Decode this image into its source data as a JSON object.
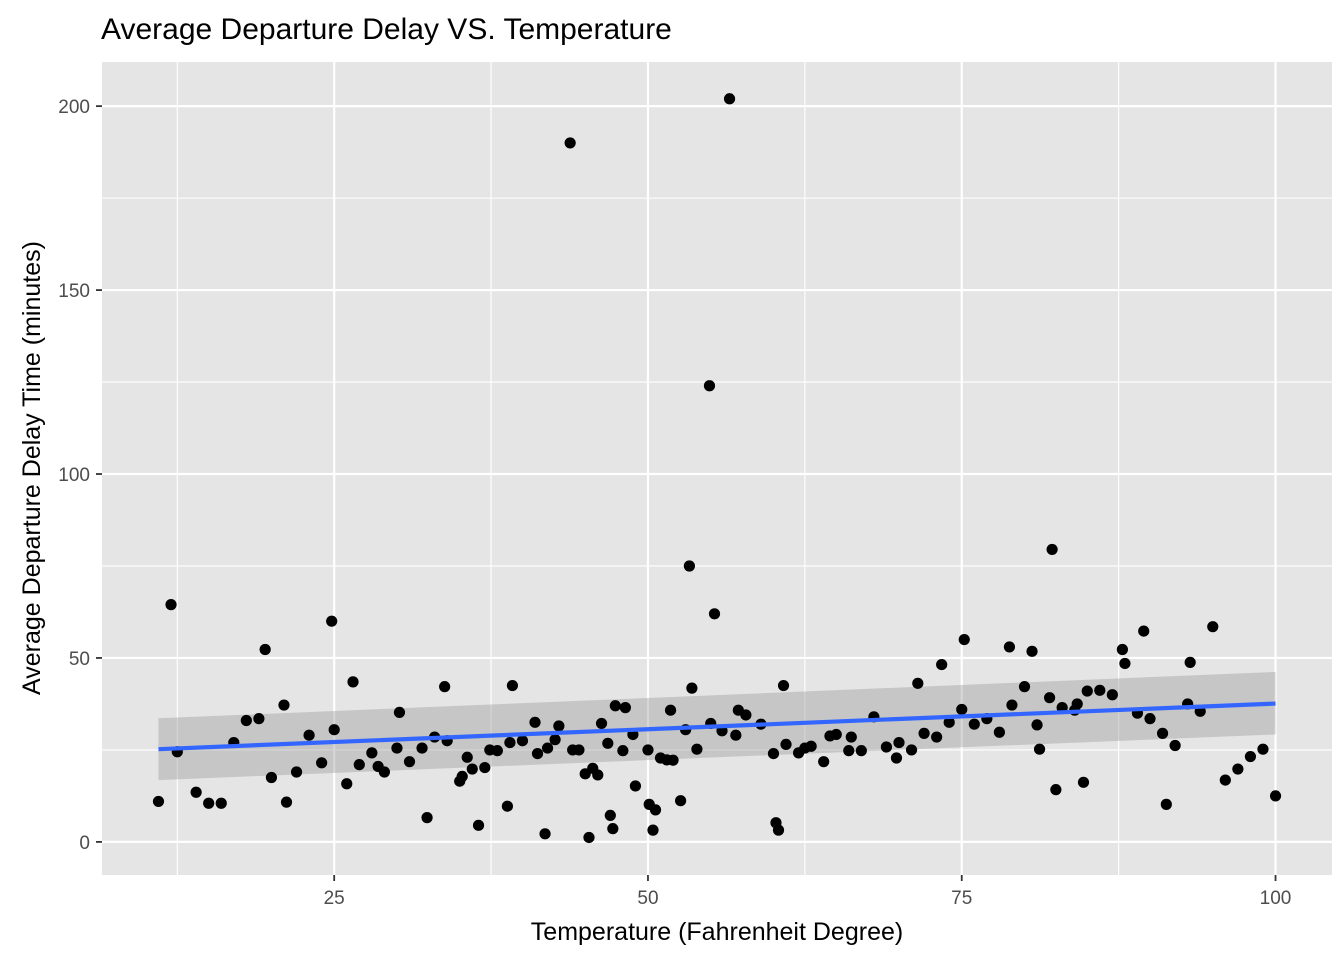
{
  "chart_data": {
    "type": "scatter",
    "title": "Average Departure Delay VS. Temperature",
    "xlabel": "Temperature (Fahrenheit Degree)",
    "ylabel": "Average Departure Delay Time (minutes)",
    "xlim": [
      6.5,
      104.5
    ],
    "ylim": [
      -9,
      212
    ],
    "x_ticks": [
      25,
      50,
      75,
      100
    ],
    "x_tick_labels": [
      "25",
      "50",
      "75",
      "100"
    ],
    "y_ticks": [
      0,
      50,
      100,
      150,
      200
    ],
    "y_tick_labels": [
      "0",
      "50",
      "100",
      "150",
      "200"
    ],
    "grid": true,
    "legend": "none",
    "colors": {
      "panel": "#e5e5e5",
      "grid": "#ffffff",
      "point": "#000000",
      "fit_line": "#3366ff",
      "ribbon": "#999999"
    },
    "points": [
      {
        "x": 11.0,
        "y": 11
      },
      {
        "x": 12.0,
        "y": 64.5
      },
      {
        "x": 12.5,
        "y": 24.5
      },
      {
        "x": 14.0,
        "y": 13.5
      },
      {
        "x": 15.0,
        "y": 10.5
      },
      {
        "x": 16.0,
        "y": 10.5
      },
      {
        "x": 17.0,
        "y": 27
      },
      {
        "x": 18.0,
        "y": 33
      },
      {
        "x": 19.0,
        "y": 33.5
      },
      {
        "x": 19.5,
        "y": 52.3
      },
      {
        "x": 20.0,
        "y": 17.5
      },
      {
        "x": 21.0,
        "y": 37.2
      },
      {
        "x": 21.2,
        "y": 10.8
      },
      {
        "x": 22.0,
        "y": 19
      },
      {
        "x": 23.0,
        "y": 29
      },
      {
        "x": 24.0,
        "y": 21.5
      },
      {
        "x": 24.8,
        "y": 60
      },
      {
        "x": 25.0,
        "y": 30.5
      },
      {
        "x": 26.0,
        "y": 15.8
      },
      {
        "x": 26.5,
        "y": 43.5
      },
      {
        "x": 27.0,
        "y": 21
      },
      {
        "x": 28.0,
        "y": 24.2
      },
      {
        "x": 28.5,
        "y": 20.5
      },
      {
        "x": 29.0,
        "y": 19
      },
      {
        "x": 30.0,
        "y": 25.5
      },
      {
        "x": 30.2,
        "y": 35.2
      },
      {
        "x": 31.0,
        "y": 21.8
      },
      {
        "x": 32.0,
        "y": 25.5
      },
      {
        "x": 32.4,
        "y": 6.6
      },
      {
        "x": 33.0,
        "y": 28.5
      },
      {
        "x": 33.8,
        "y": 42.2
      },
      {
        "x": 34.0,
        "y": 27.5
      },
      {
        "x": 35.0,
        "y": 16.5
      },
      {
        "x": 35.2,
        "y": 17.8
      },
      {
        "x": 35.6,
        "y": 23
      },
      {
        "x": 36.0,
        "y": 19.8
      },
      {
        "x": 36.5,
        "y": 4.5
      },
      {
        "x": 37.0,
        "y": 20.2
      },
      {
        "x": 37.4,
        "y": 25
      },
      {
        "x": 38.0,
        "y": 24.8
      },
      {
        "x": 38.8,
        "y": 9.7
      },
      {
        "x": 39.0,
        "y": 27
      },
      {
        "x": 39.2,
        "y": 42.5
      },
      {
        "x": 40.0,
        "y": 27.5
      },
      {
        "x": 41.0,
        "y": 32.5
      },
      {
        "x": 41.2,
        "y": 24
      },
      {
        "x": 41.8,
        "y": 2.2
      },
      {
        "x": 42.0,
        "y": 25.5
      },
      {
        "x": 42.6,
        "y": 27.8
      },
      {
        "x": 42.9,
        "y": 31.5
      },
      {
        "x": 43.8,
        "y": 190
      },
      {
        "x": 44.0,
        "y": 25
      },
      {
        "x": 44.5,
        "y": 25
      },
      {
        "x": 45.0,
        "y": 18.5
      },
      {
        "x": 45.3,
        "y": 1.2
      },
      {
        "x": 45.6,
        "y": 20
      },
      {
        "x": 46.0,
        "y": 18.2
      },
      {
        "x": 46.3,
        "y": 32.2
      },
      {
        "x": 46.8,
        "y": 26.8
      },
      {
        "x": 47.0,
        "y": 7.2
      },
      {
        "x": 47.2,
        "y": 3.6
      },
      {
        "x": 47.4,
        "y": 37
      },
      {
        "x": 48.0,
        "y": 24.8
      },
      {
        "x": 48.2,
        "y": 36.5
      },
      {
        "x": 48.8,
        "y": 29.2
      },
      {
        "x": 49.0,
        "y": 15.2
      },
      {
        "x": 50.0,
        "y": 25
      },
      {
        "x": 50.1,
        "y": 10.2
      },
      {
        "x": 50.4,
        "y": 3.2
      },
      {
        "x": 50.6,
        "y": 8.7
      },
      {
        "x": 51.0,
        "y": 22.8
      },
      {
        "x": 51.5,
        "y": 22.3
      },
      {
        "x": 51.8,
        "y": 35.8
      },
      {
        "x": 52.0,
        "y": 22.2
      },
      {
        "x": 52.6,
        "y": 11.2
      },
      {
        "x": 53.0,
        "y": 30.5
      },
      {
        "x": 53.3,
        "y": 75
      },
      {
        "x": 53.5,
        "y": 41.8
      },
      {
        "x": 53.9,
        "y": 25.2
      },
      {
        "x": 54.9,
        "y": 124
      },
      {
        "x": 55.0,
        "y": 32.2
      },
      {
        "x": 55.3,
        "y": 62
      },
      {
        "x": 55.9,
        "y": 30.2
      },
      {
        "x": 56.5,
        "y": 202
      },
      {
        "x": 57.0,
        "y": 29
      },
      {
        "x": 57.2,
        "y": 35.8
      },
      {
        "x": 57.8,
        "y": 34.5
      },
      {
        "x": 59.0,
        "y": 32
      },
      {
        "x": 60.0,
        "y": 24
      },
      {
        "x": 60.2,
        "y": 5.2
      },
      {
        "x": 60.4,
        "y": 3.2
      },
      {
        "x": 60.8,
        "y": 42.5
      },
      {
        "x": 61.0,
        "y": 26.5
      },
      {
        "x": 62.0,
        "y": 24.2
      },
      {
        "x": 62.5,
        "y": 25.5
      },
      {
        "x": 63.0,
        "y": 26
      },
      {
        "x": 64.0,
        "y": 21.8
      },
      {
        "x": 64.5,
        "y": 28.8
      },
      {
        "x": 65.0,
        "y": 29.2
      },
      {
        "x": 66.0,
        "y": 24.8
      },
      {
        "x": 66.2,
        "y": 28.5
      },
      {
        "x": 67.0,
        "y": 24.8
      },
      {
        "x": 68.0,
        "y": 34
      },
      {
        "x": 69.0,
        "y": 25.8
      },
      {
        "x": 69.8,
        "y": 22.8
      },
      {
        "x": 70.0,
        "y": 27
      },
      {
        "x": 71.0,
        "y": 25
      },
      {
        "x": 71.5,
        "y": 43.1
      },
      {
        "x": 72.0,
        "y": 29.5
      },
      {
        "x": 73.0,
        "y": 28.5
      },
      {
        "x": 73.4,
        "y": 48.2
      },
      {
        "x": 74.0,
        "y": 32.5
      },
      {
        "x": 75.0,
        "y": 36
      },
      {
        "x": 75.2,
        "y": 55
      },
      {
        "x": 76.0,
        "y": 32
      },
      {
        "x": 77.0,
        "y": 33.5
      },
      {
        "x": 78.0,
        "y": 29.8
      },
      {
        "x": 78.8,
        "y": 53
      },
      {
        "x": 79.0,
        "y": 37.2
      },
      {
        "x": 80.0,
        "y": 42.2
      },
      {
        "x": 80.6,
        "y": 51.8
      },
      {
        "x": 81.0,
        "y": 31.8
      },
      {
        "x": 81.2,
        "y": 25.2
      },
      {
        "x": 82.0,
        "y": 39.2
      },
      {
        "x": 82.2,
        "y": 79.5
      },
      {
        "x": 82.5,
        "y": 14.2
      },
      {
        "x": 83.0,
        "y": 36.5
      },
      {
        "x": 84.0,
        "y": 35.8
      },
      {
        "x": 84.2,
        "y": 37.5
      },
      {
        "x": 84.7,
        "y": 16.2
      },
      {
        "x": 85.0,
        "y": 41
      },
      {
        "x": 86.0,
        "y": 41.2
      },
      {
        "x": 87.0,
        "y": 40
      },
      {
        "x": 87.8,
        "y": 52.3
      },
      {
        "x": 88.0,
        "y": 48.5
      },
      {
        "x": 89.0,
        "y": 35
      },
      {
        "x": 89.5,
        "y": 57.3
      },
      {
        "x": 90.0,
        "y": 33.5
      },
      {
        "x": 91.0,
        "y": 29.5
      },
      {
        "x": 91.3,
        "y": 10.2
      },
      {
        "x": 92.0,
        "y": 26.2
      },
      {
        "x": 93.0,
        "y": 37.5
      },
      {
        "x": 93.2,
        "y": 48.8
      },
      {
        "x": 94.0,
        "y": 35.5
      },
      {
        "x": 95.0,
        "y": 58.5
      },
      {
        "x": 96.0,
        "y": 16.8
      },
      {
        "x": 97.0,
        "y": 19.8
      },
      {
        "x": 98.0,
        "y": 23.2
      },
      {
        "x": 99.0,
        "y": 25.2
      },
      {
        "x": 100.0,
        "y": 12.5
      }
    ],
    "fit": {
      "method": "linear",
      "x": [
        11,
        100
      ],
      "y": [
        25.2,
        37.6
      ],
      "ci_lower": [
        16.8,
        29.2
      ],
      "ci_upper": [
        33.6,
        46.2
      ]
    }
  }
}
